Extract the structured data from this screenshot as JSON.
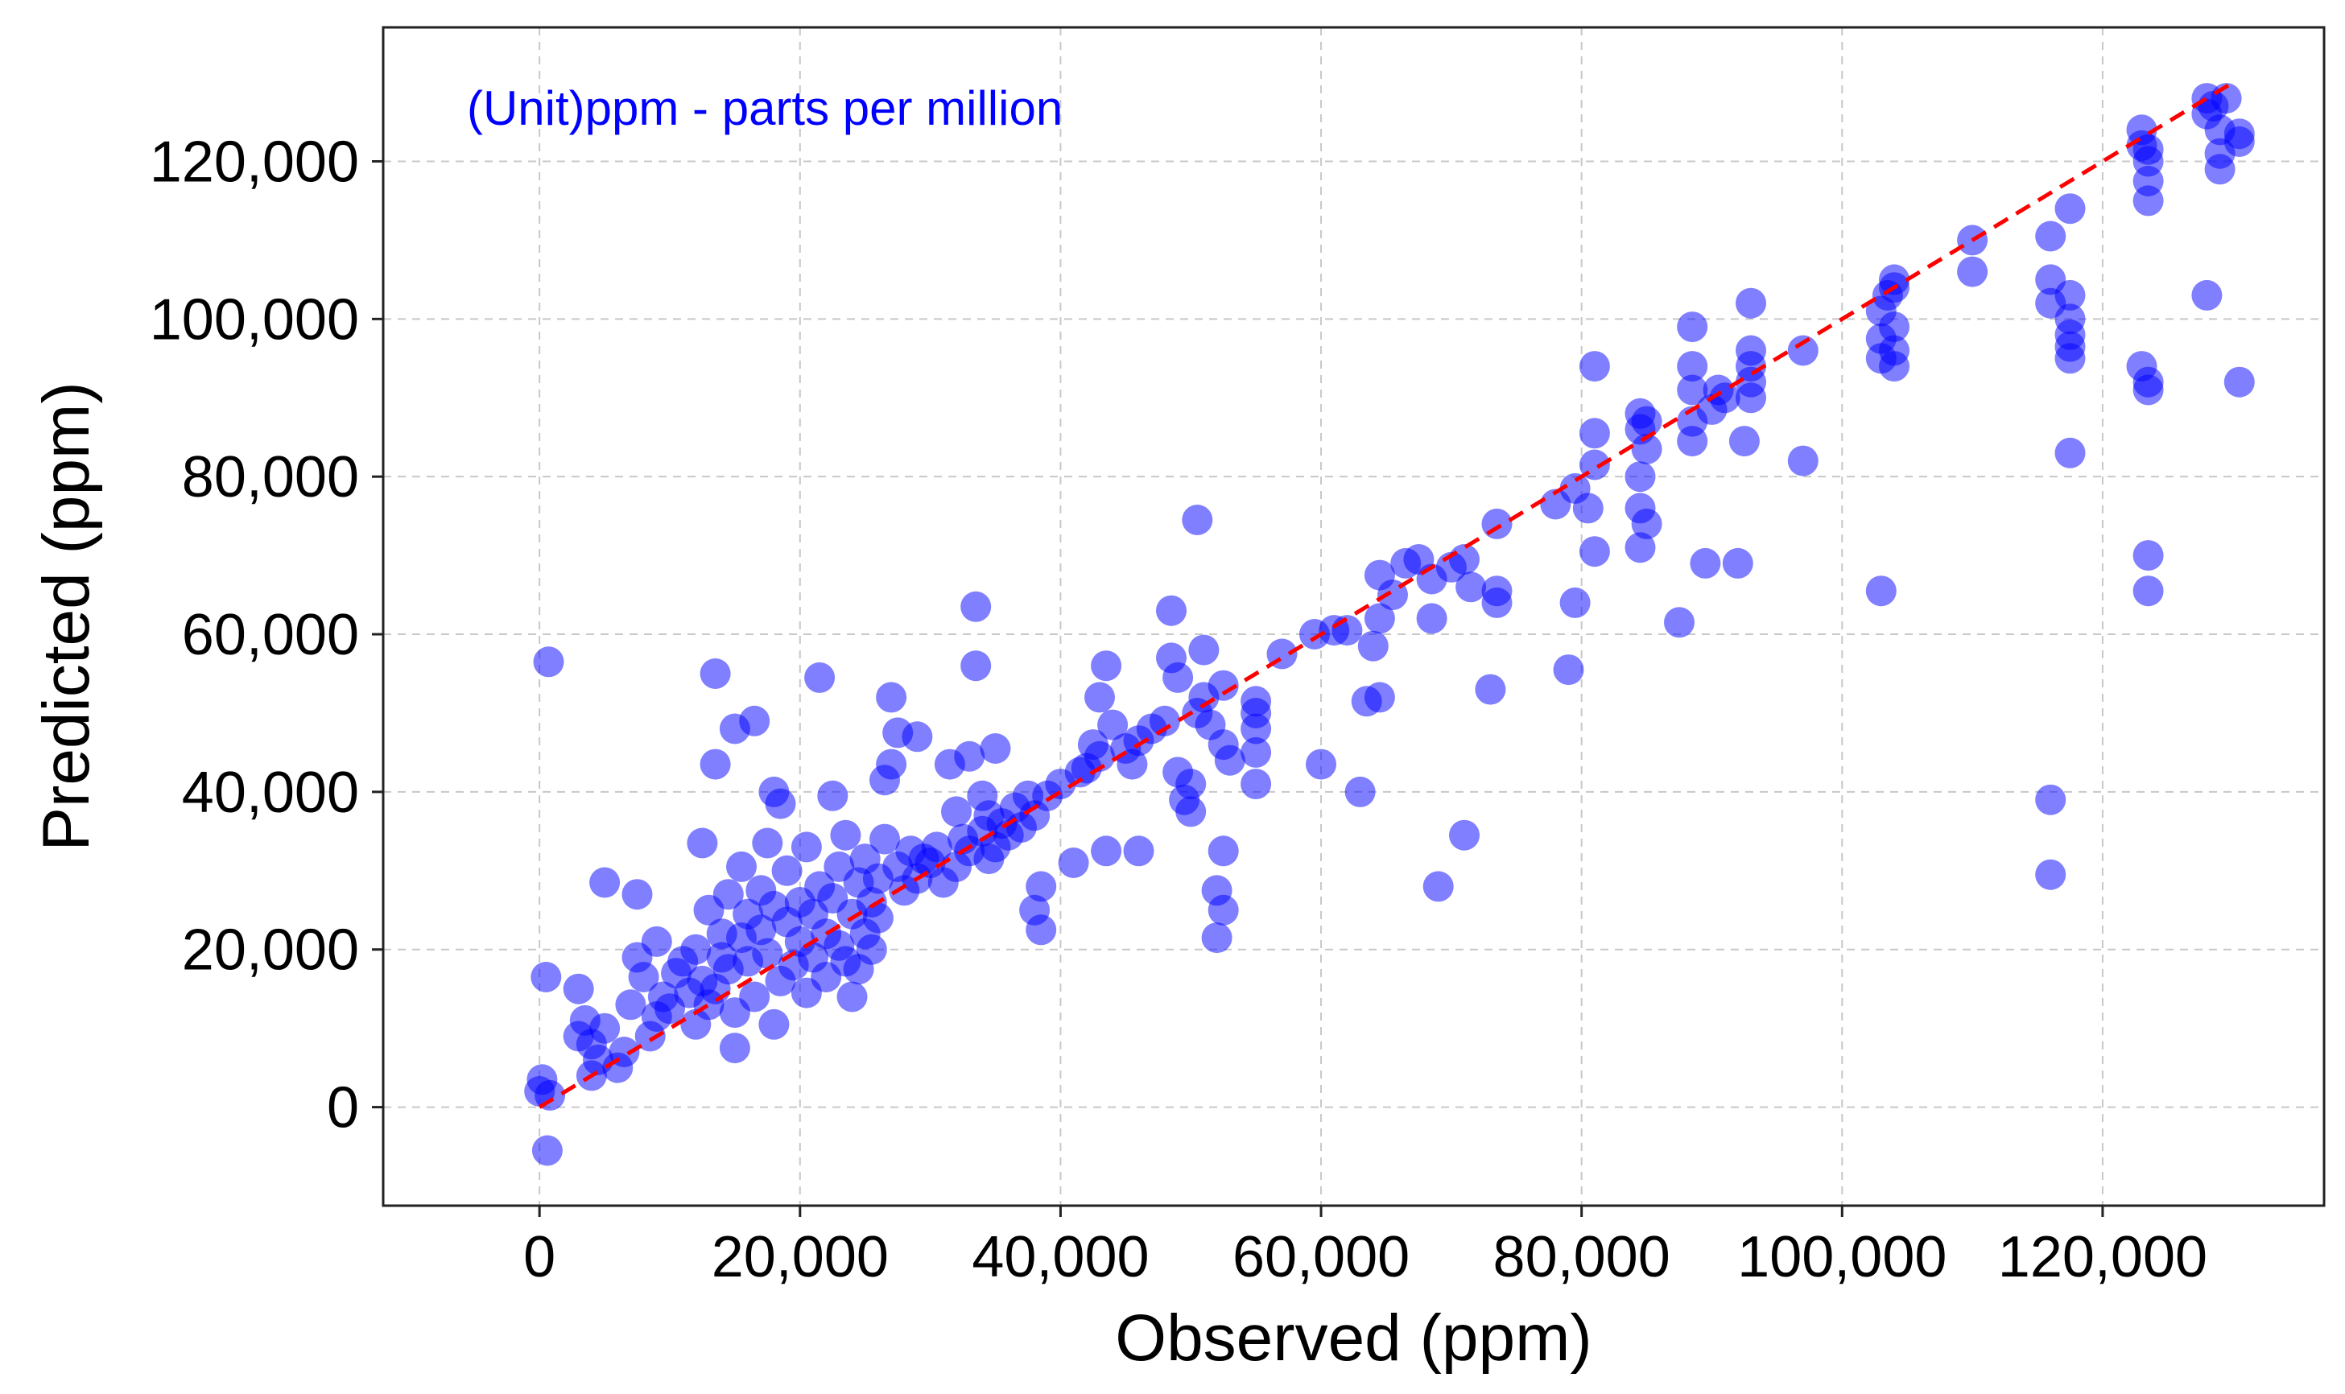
{
  "chart_data": {
    "type": "scatter",
    "title": "",
    "xlabel": "Observed (ppm)",
    "ylabel": "Predicted (ppm)",
    "annotation": "(Unit)ppm - parts per million",
    "xlim": [
      -12000,
      137000
    ],
    "ylim": [
      -12500,
      137000
    ],
    "xticks": [
      0,
      20000,
      40000,
      60000,
      80000,
      100000,
      120000
    ],
    "yticks": [
      0,
      20000,
      40000,
      60000,
      80000,
      100000,
      120000
    ],
    "xtick_labels": [
      "0",
      "20,000",
      "40,000",
      "60,000",
      "80,000",
      "100,000",
      "120,000"
    ],
    "ytick_labels": [
      "0",
      "20,000",
      "40,000",
      "60,000",
      "80,000",
      "100,000",
      "120,000"
    ],
    "grid": true,
    "grid_style": "dashed",
    "legend": "none",
    "colors": {
      "points": "#0000ff",
      "reference_line": "#ff0000",
      "annotation": "#0000ff",
      "grid": "#c8c8c8"
    },
    "reference_line": {
      "style": "dashed",
      "x": [
        0,
        130000
      ],
      "y": [
        0,
        130000
      ]
    },
    "series": [
      {
        "marker": "circle",
        "alpha": 0.5,
        "points": [
          [
            0,
            2000
          ],
          [
            200,
            3500
          ],
          [
            800,
            1500
          ],
          [
            500,
            16500
          ],
          [
            700,
            56500
          ],
          [
            600,
            -5500
          ],
          [
            3000,
            9000
          ],
          [
            3500,
            11000
          ],
          [
            3000,
            15000
          ],
          [
            4000,
            8000
          ],
          [
            4500,
            6000
          ],
          [
            4000,
            4000
          ],
          [
            5000,
            10000
          ],
          [
            5000,
            28500
          ],
          [
            6000,
            5000
          ],
          [
            6500,
            7000
          ],
          [
            7000,
            13000
          ],
          [
            7500,
            19000
          ],
          [
            7500,
            27000
          ],
          [
            8000,
            16500
          ],
          [
            8500,
            9000
          ],
          [
            9000,
            21000
          ],
          [
            9000,
            11500
          ],
          [
            9500,
            14000
          ],
          [
            10000,
            12500
          ],
          [
            10500,
            17000
          ],
          [
            11000,
            18500
          ],
          [
            11500,
            14500
          ],
          [
            12000,
            10500
          ],
          [
            12000,
            20000
          ],
          [
            12500,
            33500
          ],
          [
            12500,
            16000
          ],
          [
            13000,
            25000
          ],
          [
            13000,
            13000
          ],
          [
            13500,
            15000
          ],
          [
            13500,
            43500
          ],
          [
            13500,
            55000
          ],
          [
            14000,
            19000
          ],
          [
            14000,
            22000
          ],
          [
            14500,
            27000
          ],
          [
            14500,
            17500
          ],
          [
            15000,
            12000
          ],
          [
            15000,
            48000
          ],
          [
            15000,
            7500
          ],
          [
            15500,
            21500
          ],
          [
            15500,
            30500
          ],
          [
            16000,
            24500
          ],
          [
            16000,
            18500
          ],
          [
            16500,
            14000
          ],
          [
            16500,
            49000
          ],
          [
            17000,
            27500
          ],
          [
            17000,
            22500
          ],
          [
            17500,
            19500
          ],
          [
            17500,
            33500
          ],
          [
            18000,
            40000
          ],
          [
            18000,
            10500
          ],
          [
            18000,
            25500
          ],
          [
            18500,
            38500
          ],
          [
            18500,
            16000
          ],
          [
            19000,
            23500
          ],
          [
            19000,
            30000
          ],
          [
            19500,
            18000
          ],
          [
            20000,
            26000
          ],
          [
            20000,
            21000
          ],
          [
            20500,
            14500
          ],
          [
            20500,
            33000
          ],
          [
            21000,
            24500
          ],
          [
            21000,
            19000
          ],
          [
            21500,
            54500
          ],
          [
            21500,
            28000
          ],
          [
            22000,
            22000
          ],
          [
            22000,
            16500
          ],
          [
            22500,
            39500
          ],
          [
            22500,
            26500
          ],
          [
            23000,
            30500
          ],
          [
            23000,
            20500
          ],
          [
            23500,
            34500
          ],
          [
            23500,
            18500
          ],
          [
            24000,
            14000
          ],
          [
            24000,
            24500
          ],
          [
            24500,
            28500
          ],
          [
            24500,
            17500
          ],
          [
            25000,
            31500
          ],
          [
            25000,
            22000
          ],
          [
            25500,
            20000
          ],
          [
            25500,
            26000
          ],
          [
            26000,
            29000
          ],
          [
            26000,
            24000
          ],
          [
            26500,
            34000
          ],
          [
            26500,
            41500
          ],
          [
            27000,
            52000
          ],
          [
            27000,
            43500
          ],
          [
            27500,
            30500
          ],
          [
            27500,
            47500
          ],
          [
            28000,
            27500
          ],
          [
            28500,
            32500
          ],
          [
            29000,
            29000
          ],
          [
            29000,
            47000
          ],
          [
            29500,
            31500
          ],
          [
            30000,
            31000
          ],
          [
            30500,
            33000
          ],
          [
            31000,
            28500
          ],
          [
            31500,
            43500
          ],
          [
            32000,
            37500
          ],
          [
            32000,
            30500
          ],
          [
            32500,
            34000
          ],
          [
            33000,
            44500
          ],
          [
            33000,
            32500
          ],
          [
            33500,
            63500
          ],
          [
            33500,
            56000
          ],
          [
            34000,
            39500
          ],
          [
            34000,
            35000
          ],
          [
            34500,
            37000
          ],
          [
            34500,
            31500
          ],
          [
            35000,
            45500
          ],
          [
            35000,
            33000
          ],
          [
            35500,
            36000
          ],
          [
            36000,
            34500
          ],
          [
            36500,
            38000
          ],
          [
            37000,
            35500
          ],
          [
            37500,
            39500
          ],
          [
            38000,
            37000
          ],
          [
            38000,
            25000
          ],
          [
            38500,
            28000
          ],
          [
            38500,
            22500
          ],
          [
            39000,
            39500
          ],
          [
            40000,
            41000
          ],
          [
            41000,
            31000
          ],
          [
            41500,
            42500
          ],
          [
            42000,
            43000
          ],
          [
            42500,
            46000
          ],
          [
            43000,
            44500
          ],
          [
            43000,
            52000
          ],
          [
            43500,
            56000
          ],
          [
            43500,
            32500
          ],
          [
            44000,
            48500
          ],
          [
            45000,
            45500
          ],
          [
            45500,
            43500
          ],
          [
            46000,
            46500
          ],
          [
            46000,
            32500
          ],
          [
            47000,
            48000
          ],
          [
            48000,
            49000
          ],
          [
            48500,
            57000
          ],
          [
            48500,
            63000
          ],
          [
            49000,
            54500
          ],
          [
            49000,
            42500
          ],
          [
            49500,
            39000
          ],
          [
            50000,
            37500
          ],
          [
            50000,
            41000
          ],
          [
            50500,
            74500
          ],
          [
            50500,
            50000
          ],
          [
            51000,
            58000
          ],
          [
            51000,
            52000
          ],
          [
            51500,
            48500
          ],
          [
            52000,
            27500
          ],
          [
            52000,
            21500
          ],
          [
            52500,
            53500
          ],
          [
            52500,
            46000
          ],
          [
            52500,
            25000
          ],
          [
            52500,
            32500
          ],
          [
            53000,
            44000
          ],
          [
            55000,
            41000
          ],
          [
            55000,
            45000
          ],
          [
            55000,
            48000
          ],
          [
            55000,
            50000
          ],
          [
            55000,
            51500
          ],
          [
            57000,
            57500
          ],
          [
            59500,
            60000
          ],
          [
            60000,
            43500
          ],
          [
            61000,
            60500
          ],
          [
            62000,
            60500
          ],
          [
            63000,
            40000
          ],
          [
            63500,
            51500
          ],
          [
            64000,
            58500
          ],
          [
            64500,
            62000
          ],
          [
            64500,
            67500
          ],
          [
            64500,
            52000
          ],
          [
            65500,
            65000
          ],
          [
            66500,
            69000
          ],
          [
            67500,
            69500
          ],
          [
            68500,
            67000
          ],
          [
            68500,
            62000
          ],
          [
            69000,
            28000
          ],
          [
            70000,
            68500
          ],
          [
            71000,
            69500
          ],
          [
            71000,
            34500
          ],
          [
            71500,
            66000
          ],
          [
            73000,
            53000
          ],
          [
            73500,
            64000
          ],
          [
            73500,
            74000
          ],
          [
            73500,
            65500
          ],
          [
            78000,
            76500
          ],
          [
            79000,
            55500
          ],
          [
            79500,
            64000
          ],
          [
            79500,
            78500
          ],
          [
            80500,
            76000
          ],
          [
            81000,
            70500
          ],
          [
            81000,
            81500
          ],
          [
            81000,
            85500
          ],
          [
            81000,
            94000
          ],
          [
            84500,
            88000
          ],
          [
            84500,
            86000
          ],
          [
            84500,
            80000
          ],
          [
            84500,
            76000
          ],
          [
            84500,
            71000
          ],
          [
            85000,
            83500
          ],
          [
            85000,
            74000
          ],
          [
            85000,
            87000
          ],
          [
            87500,
            61500
          ],
          [
            88500,
            84500
          ],
          [
            88500,
            87000
          ],
          [
            88500,
            91000
          ],
          [
            88500,
            94000
          ],
          [
            88500,
            99000
          ],
          [
            89500,
            69000
          ],
          [
            90000,
            88500
          ],
          [
            90500,
            91000
          ],
          [
            91000,
            90000
          ],
          [
            92000,
            69000
          ],
          [
            92500,
            84500
          ],
          [
            93000,
            90000
          ],
          [
            93000,
            92000
          ],
          [
            93000,
            94000
          ],
          [
            93000,
            96000
          ],
          [
            93000,
            102000
          ],
          [
            97000,
            82000
          ],
          [
            97000,
            96000
          ],
          [
            103000,
            65500
          ],
          [
            103000,
            95000
          ],
          [
            103000,
            97500
          ],
          [
            103000,
            101000
          ],
          [
            103500,
            103000
          ],
          [
            104000,
            104000
          ],
          [
            104000,
            105000
          ],
          [
            104000,
            94000
          ],
          [
            104000,
            96000
          ],
          [
            104000,
            99000
          ],
          [
            110000,
            106000
          ],
          [
            110000,
            110000
          ],
          [
            116000,
            110500
          ],
          [
            116000,
            105000
          ],
          [
            116000,
            102000
          ],
          [
            116000,
            39000
          ],
          [
            116000,
            29500
          ],
          [
            117500,
            114000
          ],
          [
            117500,
            103000
          ],
          [
            117500,
            100000
          ],
          [
            117500,
            98000
          ],
          [
            117500,
            96500
          ],
          [
            117500,
            95000
          ],
          [
            117500,
            83000
          ],
          [
            123000,
            124000
          ],
          [
            123000,
            122000
          ],
          [
            123000,
            94000
          ],
          [
            123500,
            115000
          ],
          [
            123500,
            117500
          ],
          [
            123500,
            120000
          ],
          [
            123500,
            121500
          ],
          [
            123500,
            92000
          ],
          [
            123500,
            91000
          ],
          [
            123500,
            70000
          ],
          [
            123500,
            65500
          ],
          [
            128000,
            103000
          ],
          [
            128000,
            126000
          ],
          [
            128000,
            128000
          ],
          [
            128500,
            127000
          ],
          [
            129000,
            124000
          ],
          [
            129000,
            119000
          ],
          [
            129000,
            121000
          ],
          [
            129500,
            128000
          ],
          [
            130500,
            123500
          ],
          [
            130500,
            122500
          ],
          [
            130500,
            92000
          ]
        ]
      }
    ]
  }
}
